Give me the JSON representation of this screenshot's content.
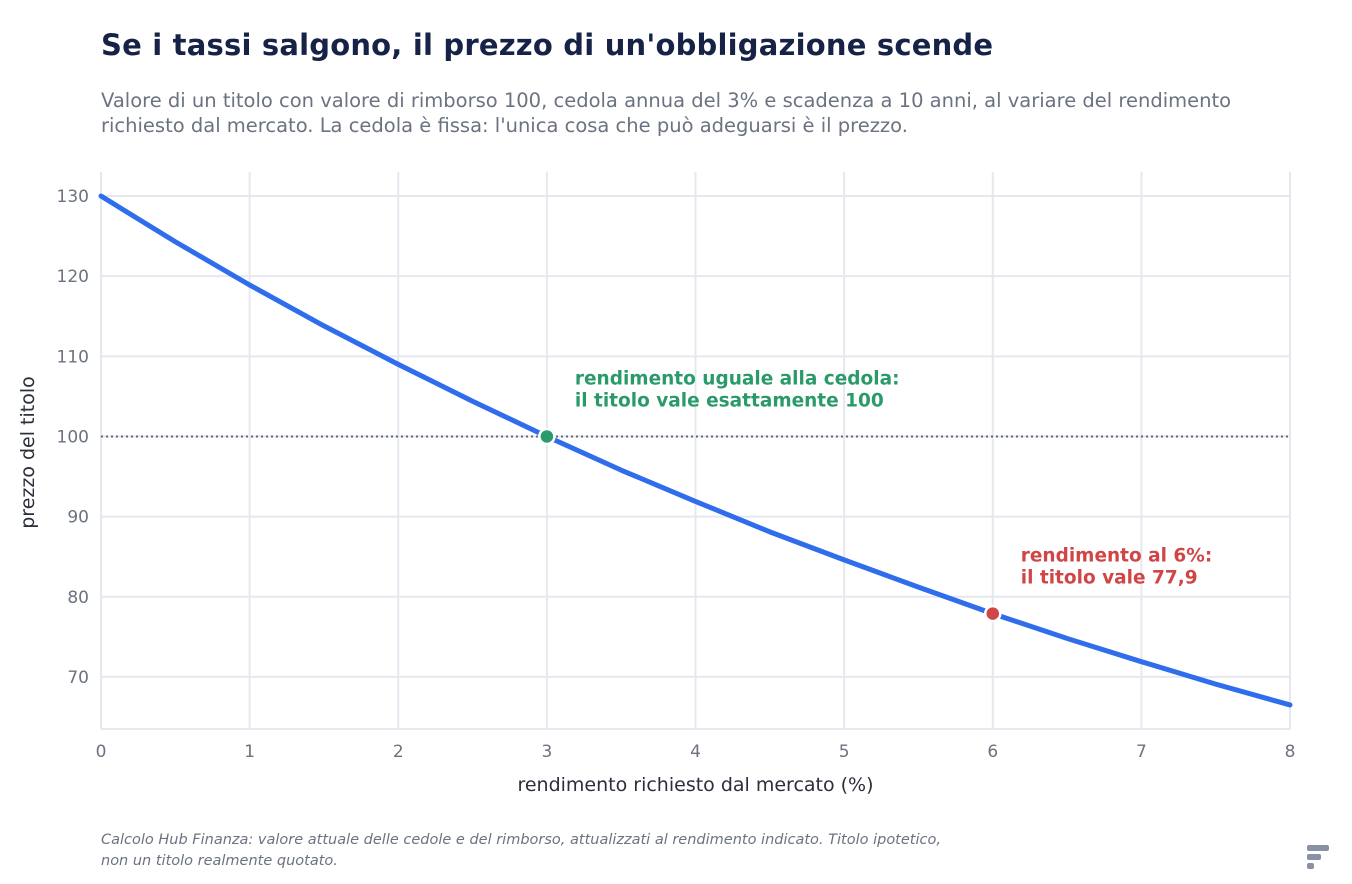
{
  "header": {
    "title": "Se i tassi salgono, il prezzo di un'obbligazione scende",
    "subtitle": "Valore di un titolo con valore di rimborso 100, cedola annua del 3% e scadenza a 10 anni, al variare del rendimento richiesto dal mercato. La cedola è fissa: l'unica cosa che può adeguarsi è il prezzo."
  },
  "footnote": "Calcolo Hub Finanza: valore attuale delle cedole e del rimborso, attualizzati al rendimento indicato. Titolo ipotetico, non un titolo realmente quotato.",
  "logo": {
    "icon": "hub-finanza-logo-icon",
    "color": "#8a90a6"
  },
  "chart_data": {
    "type": "line",
    "xlabel": "rendimento richiesto dal mercato (%)",
    "ylabel": "prezzo del titolo",
    "xlim": [
      0,
      8
    ],
    "ylim": [
      63.5,
      133
    ],
    "xticks": [
      0,
      1,
      2,
      3,
      4,
      5,
      6,
      7,
      8
    ],
    "yticks": [
      70,
      80,
      90,
      100,
      110,
      120,
      130
    ],
    "grid": true,
    "legend": "none",
    "reference_line": {
      "y": 100,
      "style": "dotted",
      "color": "#5b6478"
    },
    "series": [
      {
        "color": "#2f6ded",
        "x": [
          0,
          0.5,
          1,
          1.5,
          2,
          2.5,
          3,
          3.5,
          4,
          4.5,
          5,
          5.5,
          6,
          6.5,
          7,
          7.5,
          8
        ],
        "values": [
          130.0,
          124.3,
          118.9,
          113.8,
          109.0,
          104.4,
          100.0,
          95.8,
          91.9,
          88.1,
          84.6,
          81.2,
          77.9,
          74.8,
          71.9,
          69.1,
          66.5
        ]
      }
    ],
    "annotations": [
      {
        "x": 3,
        "y": 100,
        "color": "#2a9a6a",
        "lines": [
          "rendimento uguale alla cedola:",
          "il titolo vale esattamente 100"
        ]
      },
      {
        "x": 6,
        "y": 77.9,
        "color": "#d04545",
        "lines": [
          "rendimento al 6%:",
          "il titolo vale 77,9"
        ]
      }
    ]
  }
}
